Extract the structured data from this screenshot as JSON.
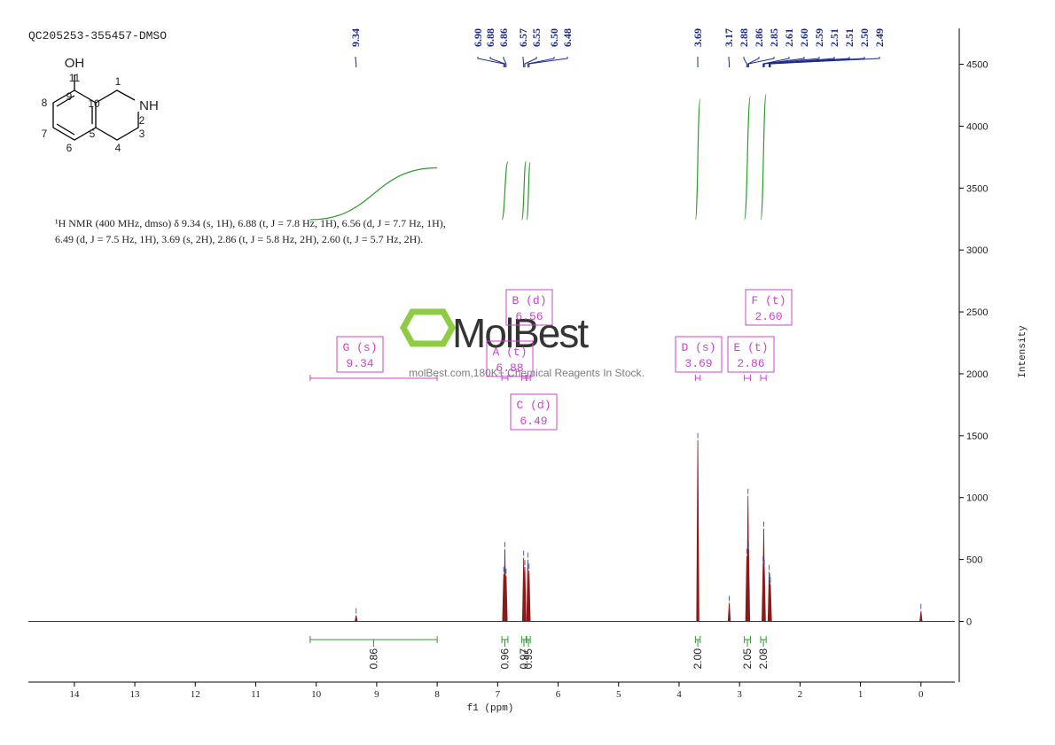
{
  "chart_data": {
    "type": "nmr",
    "title": "QC205253-355457-DMSO",
    "x_label": "f1 (ppm)",
    "y_label": "Intensity",
    "xlim": [
      14.76,
      -0.56
    ],
    "xticks": [
      0,
      1,
      2,
      3,
      4,
      5,
      6,
      7,
      8,
      9,
      10,
      11,
      12,
      13,
      14
    ],
    "ylim": [
      -490,
      4790
    ],
    "yticks": [
      0,
      500,
      1000,
      1500,
      2000,
      2500,
      3000,
      3500,
      4000,
      4500
    ],
    "color": "#8b1a1a",
    "integral_color": "#2e9b2e",
    "box_color": "#cc44cc",
    "label_color": "#1a2a8a",
    "peak_labels": [
      9.34,
      {
        "value": 6.9,
        "label": "6.90"
      },
      6.88,
      6.86,
      6.57,
      6.55,
      {
        "value": 6.5,
        "label": "6.50"
      },
      6.48,
      3.69,
      3.17,
      2.88,
      2.86,
      2.85,
      2.61,
      {
        "value": 2.6,
        "label": "2.60"
      },
      2.59,
      2.51,
      2.51,
      {
        "value": 2.5,
        "label": "2.50"
      },
      2.49
    ],
    "spectrum": {
      "x": [
        9.34,
        6.9,
        6.88,
        6.86,
        6.57,
        6.55,
        6.5,
        6.48,
        3.69,
        3.17,
        2.88,
        2.86,
        2.85,
        2.61,
        2.6,
        2.59,
        2.51,
        2.5,
        2.49,
        0
      ],
      "values": [
        50,
        385,
        585,
        370,
        515,
        440,
        500,
        410,
        1465,
        150,
        530,
        1015,
        585,
        470,
        750,
        440,
        400,
        330,
        300,
        85
      ]
    },
    "multiplets": [
      {
        "label": "G (s)",
        "shift": 9.34,
        "integral": 0.86,
        "range": [
          10.1,
          8.0
        ]
      },
      {
        "label": "A (t)",
        "shift": 6.88,
        "integral": 0.96,
        "range": [
          6.93,
          6.83
        ]
      },
      {
        "label": "B (d)",
        "shift": 6.56,
        "integral": 0.97,
        "range": [
          6.6,
          6.53
        ]
      },
      {
        "label": "C (d)",
        "shift": 6.49,
        "integral": 0.95,
        "range": [
          6.52,
          6.46
        ]
      },
      {
        "label": "D (s)",
        "shift": 3.69,
        "integral": {
          "value": 2,
          "label": "2.00"
        },
        "range": [
          3.73,
          3.65
        ]
      },
      {
        "label": "E (t)",
        "shift": 2.86,
        "integral": 2.05,
        "range": [
          2.92,
          2.82
        ]
      },
      {
        "label": "F (t)",
        "shift": {
          "value": 2.6,
          "label": "2.60"
        },
        "integral": 2.08,
        "range": [
          2.65,
          2.56
        ]
      }
    ]
  },
  "description": [
    "¹H NMR (400 MHz, dmso) δ 9.34 (s, 1H), 6.88 (t, J = 7.8 Hz, 1H), 6.56 (d, J = 7.7 Hz, 1H),",
    "6.49 (d, J = 7.5 Hz, 1H), 3.69 (s, 2H), 2.86 (t, J = 5.8 Hz, 2H), 2.60 (t, J = 5.7 Hz, 2H)."
  ],
  "structure": {
    "groups": [
      "OH",
      "NH"
    ],
    "locants": [
      "1",
      "2",
      "3",
      "4",
      "5",
      "6",
      "7",
      "8",
      "9",
      "10",
      "11"
    ]
  },
  "watermark": {
    "logo": "MolBest",
    "tagline": "molBest.com,180K+ Chemical Reagents In Stock."
  }
}
